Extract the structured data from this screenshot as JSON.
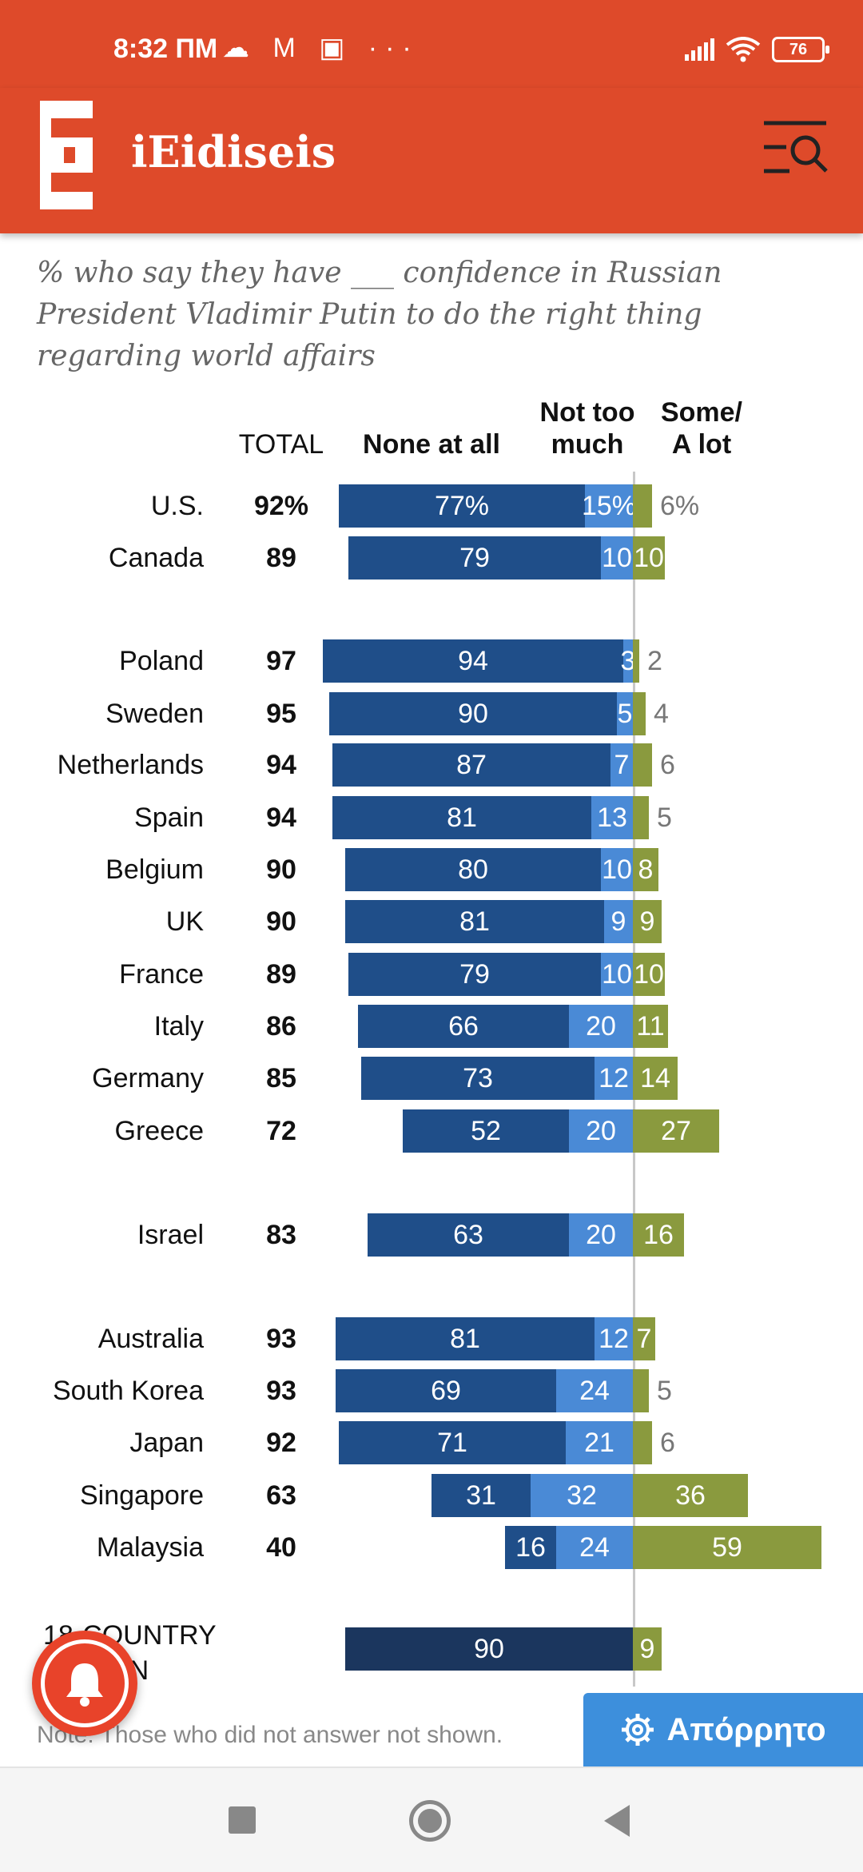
{
  "status": {
    "time": "8:32 ПМ",
    "left_icons": "☁ M ▣  ···",
    "battery": "76"
  },
  "app": {
    "title": "iEidiseis",
    "logo_letter": "E",
    "accent": "#de4a2a"
  },
  "chart": {
    "subtitle": "% who say they have ___ confidence in Russian President Vladimir Putin to do the right thing regarding world affairs",
    "headers": {
      "total": "TOTAL",
      "none": "None at all",
      "nottoo_1": "Not too",
      "nottoo_2": "much",
      "some_1": "Some/",
      "some_2": "A lot"
    },
    "median_label_1": "18-COUNTRY",
    "median_label_2": "MEDIAN",
    "median_none": "90",
    "median_some": "9",
    "note": "Note: Those who did not answer not shown."
  },
  "chart_data": {
    "type": "bar",
    "title": "",
    "series": [
      {
        "name": "None at all",
        "color": "#1f4e89"
      },
      {
        "name": "Not too much",
        "color": "#4a8ad6"
      },
      {
        "name": "Some/A lot",
        "color": "#8a9a3e"
      }
    ],
    "rows": [
      {
        "country": "U.S.",
        "total": "92%",
        "none": 77,
        "nottoo": 15,
        "some": 6,
        "none_label": "77%",
        "nottoo_label": "15%",
        "some_label": "6%"
      },
      {
        "country": "Canada",
        "total": "89",
        "none": 79,
        "nottoo": 10,
        "some": 10,
        "none_label": "79",
        "nottoo_label": "10",
        "some_label": "10"
      },
      {
        "country": "Poland",
        "total": "97",
        "none": 94,
        "nottoo": 3,
        "some": 2,
        "none_label": "94",
        "nottoo_label": "3",
        "some_label": "2"
      },
      {
        "country": "Sweden",
        "total": "95",
        "none": 90,
        "nottoo": 5,
        "some": 4,
        "none_label": "90",
        "nottoo_label": "5",
        "some_label": "4"
      },
      {
        "country": "Netherlands",
        "total": "94",
        "none": 87,
        "nottoo": 7,
        "some": 6,
        "none_label": "87",
        "nottoo_label": "7",
        "some_label": "6"
      },
      {
        "country": "Spain",
        "total": "94",
        "none": 81,
        "nottoo": 13,
        "some": 5,
        "none_label": "81",
        "nottoo_label": "13",
        "some_label": "5"
      },
      {
        "country": "Belgium",
        "total": "90",
        "none": 80,
        "nottoo": 10,
        "some": 8,
        "none_label": "80",
        "nottoo_label": "10",
        "some_label": "8"
      },
      {
        "country": "UK",
        "total": "90",
        "none": 81,
        "nottoo": 9,
        "some": 9,
        "none_label": "81",
        "nottoo_label": "9",
        "some_label": "9"
      },
      {
        "country": "France",
        "total": "89",
        "none": 79,
        "nottoo": 10,
        "some": 10,
        "none_label": "79",
        "nottoo_label": "10",
        "some_label": "10"
      },
      {
        "country": "Italy",
        "total": "86",
        "none": 66,
        "nottoo": 20,
        "some": 11,
        "none_label": "66",
        "nottoo_label": "20",
        "some_label": "11"
      },
      {
        "country": "Germany",
        "total": "85",
        "none": 73,
        "nottoo": 12,
        "some": 14,
        "none_label": "73",
        "nottoo_label": "12",
        "some_label": "14"
      },
      {
        "country": "Greece",
        "total": "72",
        "none": 52,
        "nottoo": 20,
        "some": 27,
        "none_label": "52",
        "nottoo_label": "20",
        "some_label": "27"
      },
      {
        "country": "Israel",
        "total": "83",
        "none": 63,
        "nottoo": 20,
        "some": 16,
        "none_label": "63",
        "nottoo_label": "20",
        "some_label": "16"
      },
      {
        "country": "Australia",
        "total": "93",
        "none": 81,
        "nottoo": 12,
        "some": 7,
        "none_label": "81",
        "nottoo_label": "12",
        "some_label": "7"
      },
      {
        "country": "South Korea",
        "total": "93",
        "none": 69,
        "nottoo": 24,
        "some": 5,
        "none_label": "69",
        "nottoo_label": "24",
        "some_label": "5"
      },
      {
        "country": "Japan",
        "total": "92",
        "none": 71,
        "nottoo": 21,
        "some": 6,
        "none_label": "71",
        "nottoo_label": "21",
        "some_label": "6"
      },
      {
        "country": "Singapore",
        "total": "63",
        "none": 31,
        "nottoo": 32,
        "some": 36,
        "none_label": "31",
        "nottoo_label": "32",
        "some_label": "36"
      },
      {
        "country": "Malaysia",
        "total": "40",
        "none": 16,
        "nottoo": 24,
        "some": 59,
        "none_label": "16",
        "nottoo_label": "24",
        "some_label": "59"
      }
    ]
  },
  "privacy_button": {
    "label": "Απόρρητο",
    "color": "#3d8fdc"
  }
}
